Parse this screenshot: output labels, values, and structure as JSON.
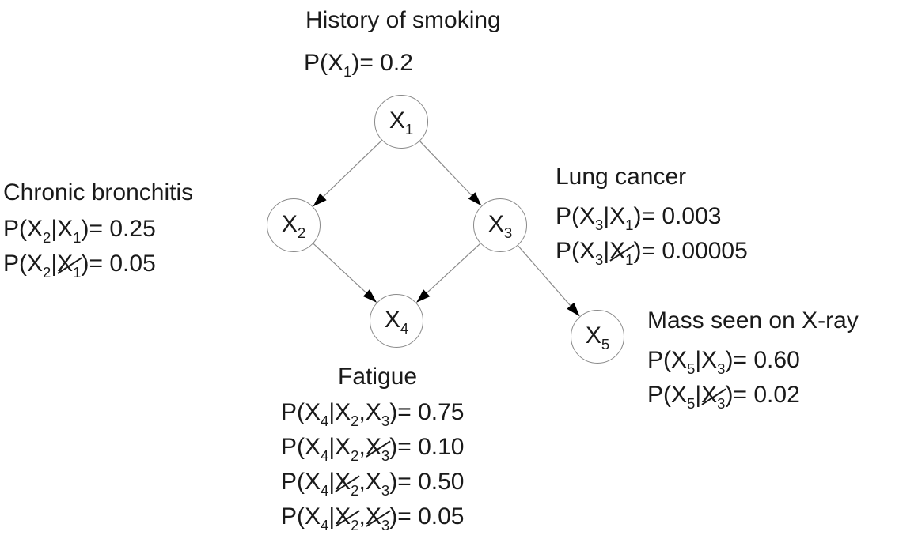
{
  "nodes": {
    "x1": {
      "label": "X",
      "sub": "1"
    },
    "x2": {
      "label": "X",
      "sub": "2"
    },
    "x3": {
      "label": "X",
      "sub": "3"
    },
    "x4": {
      "label": "X",
      "sub": "4"
    },
    "x5": {
      "label": "X",
      "sub": "5"
    }
  },
  "titles": {
    "x1": "History of smoking",
    "x2": "Chronic bronchitis",
    "x3": "Lung cancer",
    "x4": "Fatigue",
    "x5": "Mass seen on X-ray"
  },
  "probabilities": {
    "x1": [
      "P(X1)= 0.2"
    ],
    "x2": [
      "P(X2|X1)= 0.25",
      "P(X2|¬X1)= 0.05"
    ],
    "x3": [
      "P(X3|X1)= 0.003",
      "P(X3|¬X1)= 0.00005"
    ],
    "x4": [
      "P(X4|X2,X3)= 0.75",
      "P(X4|X2,¬X3)= 0.10",
      "P(X4|¬X2,X3)= 0.50",
      "P(X4|¬X2,¬X3)= 0.05"
    ],
    "x5": [
      "P(X5|X3)= 0.60",
      "P(X5|¬X3)= 0.02"
    ]
  },
  "edges": [
    {
      "from": "x1",
      "to": "x2"
    },
    {
      "from": "x1",
      "to": "x3"
    },
    {
      "from": "x2",
      "to": "x4"
    },
    {
      "from": "x3",
      "to": "x4"
    },
    {
      "from": "x3",
      "to": "x5"
    }
  ],
  "colors": {
    "node_border": "#8a8a8a",
    "edge": "#8a8a8a",
    "arrow": "#000000",
    "text": "#1a1a1a"
  }
}
